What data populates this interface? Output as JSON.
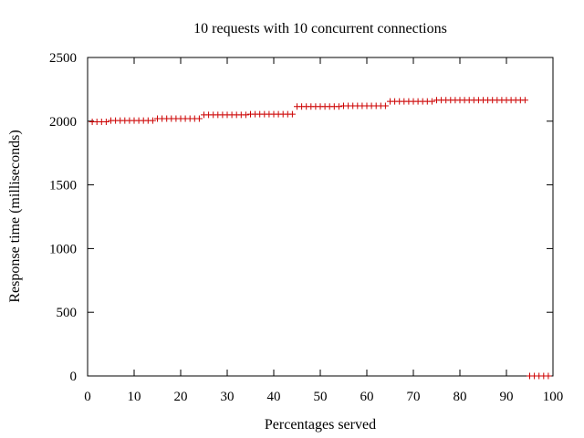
{
  "chart_data": {
    "type": "scatter",
    "title": "10 requests with 10 concurrent connections",
    "xlabel": "Percentages served",
    "ylabel": "Response time (milliseconds)",
    "xlim": [
      0,
      100
    ],
    "ylim": [
      0,
      2500
    ],
    "xticks": [
      0,
      10,
      20,
      30,
      40,
      50,
      60,
      70,
      80,
      90,
      100
    ],
    "yticks": [
      0,
      500,
      1000,
      1500,
      2000,
      2500
    ],
    "grid": false,
    "legend": "none",
    "marker": "plus",
    "color": "#cc0000",
    "series": [
      {
        "x": [
          1,
          2,
          3,
          4,
          5,
          6,
          7,
          8,
          9,
          10,
          11,
          12,
          13,
          14,
          15,
          16,
          17,
          18,
          19,
          20,
          21,
          22,
          23,
          24,
          25,
          26,
          27,
          28,
          29,
          30,
          31,
          32,
          33,
          34,
          35,
          36,
          37,
          38,
          39,
          40,
          41,
          42,
          43,
          44,
          45,
          46,
          47,
          48,
          49,
          50,
          51,
          52,
          53,
          54,
          55,
          56,
          57,
          58,
          59,
          60,
          61,
          62,
          63,
          64,
          65,
          66,
          67,
          68,
          69,
          70,
          71,
          72,
          73,
          74,
          75,
          76,
          77,
          78,
          79,
          80,
          81,
          82,
          83,
          84,
          85,
          86,
          87,
          88,
          89,
          90,
          91,
          92,
          93,
          94,
          95,
          96,
          97,
          98,
          99
        ],
        "y": [
          1995,
          1995,
          1995,
          1995,
          2005,
          2005,
          2005,
          2005,
          2005,
          2005,
          2005,
          2005,
          2005,
          2005,
          2020,
          2020,
          2020,
          2020,
          2020,
          2020,
          2020,
          2020,
          2020,
          2020,
          2050,
          2050,
          2050,
          2050,
          2050,
          2050,
          2050,
          2050,
          2050,
          2050,
          2055,
          2055,
          2055,
          2055,
          2055,
          2055,
          2055,
          2055,
          2055,
          2055,
          2115,
          2115,
          2115,
          2115,
          2115,
          2115,
          2115,
          2115,
          2115,
          2115,
          2120,
          2120,
          2120,
          2120,
          2120,
          2120,
          2120,
          2120,
          2120,
          2120,
          2155,
          2155,
          2155,
          2155,
          2155,
          2155,
          2155,
          2155,
          2155,
          2155,
          2165,
          2165,
          2165,
          2165,
          2165,
          2165,
          2165,
          2165,
          2165,
          2165,
          2165,
          2165,
          2165,
          2165,
          2165,
          2165,
          2165,
          2165,
          2165,
          2165,
          0,
          0,
          0,
          0,
          0
        ]
      }
    ]
  }
}
